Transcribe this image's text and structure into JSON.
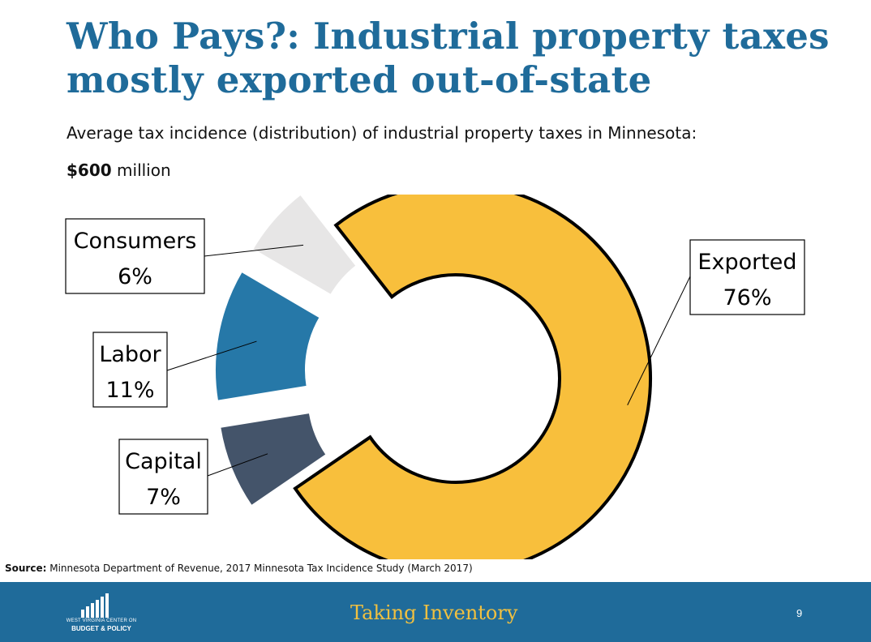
{
  "slide": {
    "title": "Who Pays?: Industrial property taxes mostly exported out-of-state",
    "subtitle": "Average tax incidence (distribution) of industrial property taxes in Minnesota:",
    "amount_value": "$600",
    "amount_unit": "million",
    "source_label": "Source:",
    "source_text": "Minnesota Department of Revenue, 2017 Minnesota Tax Incidence Study (March 2017)",
    "footer": {
      "logo_line1": "WEST VIRGINIA CENTER ON",
      "logo_line2": "BUDGET & POLICY",
      "brand": "Taking Inventory",
      "page_number": "9"
    }
  },
  "chart_data": {
    "type": "pie",
    "subtype": "donut",
    "title": "",
    "unit": "%",
    "series": [
      {
        "values": [
          {
            "label": "Exported",
            "value": 76,
            "display": "76%",
            "color": "#f8bf3c",
            "exploded": false
          },
          {
            "label": "Capital",
            "value": 7,
            "display": "7%",
            "color": "#44546a",
            "exploded": true
          },
          {
            "label": "Labor",
            "value": 11,
            "display": "11%",
            "color": "#2678a8",
            "exploded": true
          },
          {
            "label": "Consumers",
            "value": 6,
            "display": "6%",
            "color": "#e7e6e6",
            "exploded": true
          }
        ]
      }
    ],
    "legend": "none"
  }
}
